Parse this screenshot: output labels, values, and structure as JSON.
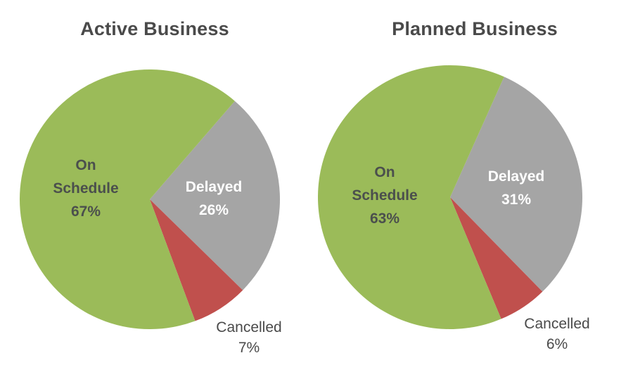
{
  "colors": {
    "on_schedule": "#9bbb59",
    "delayed": "#a5a5a5",
    "cancelled": "#c0504d",
    "title_text": "#4a4a4a"
  },
  "charts": [
    {
      "title": "Active Business",
      "slices": [
        {
          "label": "On",
          "label2": "Schedule",
          "pct": "67%"
        },
        {
          "label": "Delayed",
          "pct": "26%"
        },
        {
          "label": "Cancelled",
          "pct": "7%"
        }
      ]
    },
    {
      "title": "Planned Business",
      "slices": [
        {
          "label": "On",
          "label2": "Schedule",
          "pct": "63%"
        },
        {
          "label": "Delayed",
          "pct": "31%"
        },
        {
          "label": "Cancelled",
          "pct": "6%"
        }
      ]
    }
  ],
  "chart_data": [
    {
      "type": "pie",
      "title": "Active Business",
      "categories": [
        "On Schedule",
        "Delayed",
        "Cancelled"
      ],
      "values": [
        67,
        26,
        7
      ],
      "unit": "%",
      "colors": [
        "#9bbb59",
        "#a5a5a5",
        "#c0504d"
      ],
      "legend": "none (data labels on slices)"
    },
    {
      "type": "pie",
      "title": "Planned Business",
      "categories": [
        "On Schedule",
        "Delayed",
        "Cancelled"
      ],
      "values": [
        63,
        31,
        6
      ],
      "unit": "%",
      "colors": [
        "#9bbb59",
        "#a5a5a5",
        "#c0504d"
      ],
      "legend": "none (data labels on slices)"
    }
  ]
}
